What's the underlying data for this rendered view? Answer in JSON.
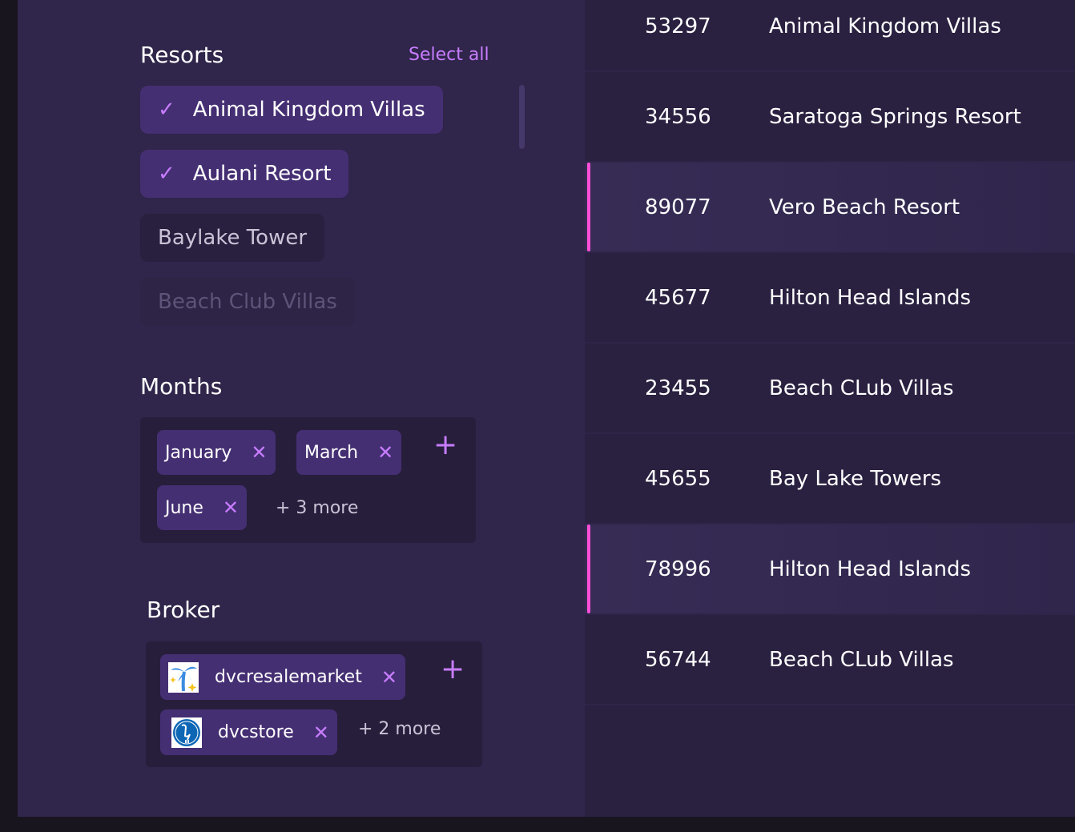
{
  "resorts": {
    "title": "Resorts",
    "select_all": "Select all",
    "items": [
      {
        "label": "Animal Kingdom Villas",
        "checked": true
      },
      {
        "label": "Aulani Resort",
        "checked": true
      },
      {
        "label": "Baylake Tower",
        "checked": false
      },
      {
        "label": "Beach Club Villas",
        "checked": false
      }
    ]
  },
  "months": {
    "title": "Months",
    "tags": [
      "January",
      "March",
      "June"
    ],
    "more": "+ 3 more"
  },
  "broker": {
    "title": "Broker",
    "tags": [
      {
        "label": "dvcresalemarket",
        "icon": "palm-tree-logo"
      },
      {
        "label": "dvcstore",
        "icon": "heron-logo"
      }
    ],
    "more": "+ 2 more"
  },
  "table": {
    "rows": [
      {
        "id": "53297",
        "name": "Animal Kingdom Villas",
        "highlighted": false
      },
      {
        "id": "34556",
        "name": "Saratoga Springs Resort",
        "highlighted": false
      },
      {
        "id": "89077",
        "name": "Vero Beach Resort",
        "highlighted": true
      },
      {
        "id": "45677",
        "name": "Hilton Head Islands",
        "highlighted": false
      },
      {
        "id": "23455",
        "name": "Beach CLub Villas",
        "highlighted": false
      },
      {
        "id": "45655",
        "name": "Bay Lake Towers",
        "highlighted": false
      },
      {
        "id": "78996",
        "name": "Hilton Head Islands",
        "highlighted": true
      },
      {
        "id": "56744",
        "name": "Beach CLub Villas",
        "highlighted": false
      }
    ]
  },
  "colors": {
    "accent": "#c77dff",
    "highlight_bar": "#ff4fd8",
    "panel": "#30254a"
  }
}
